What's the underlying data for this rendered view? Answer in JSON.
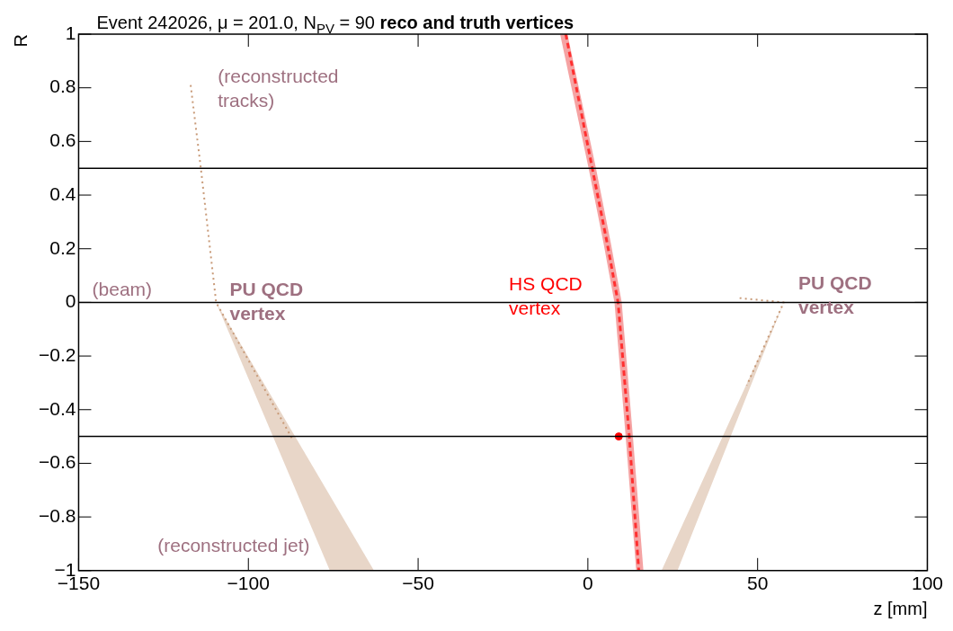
{
  "chart_data": {
    "type": "line",
    "title": "Event 242026, μ = 201.0, N$_{PV}$ = 90",
    "subtitle": "reco and truth vertices",
    "xlabel": "z [mm]",
    "ylabel": "R",
    "xlim": [
      -150,
      100
    ],
    "xticks": [
      {
        "value": -150,
        "label": "−150"
      },
      {
        "value": -100,
        "label": "−100"
      },
      {
        "value": -50,
        "label": "−50"
      },
      0,
      50,
      100
    ],
    "ylim": [
      -1,
      1
    ],
    "yticks": [
      {
        "value": -1,
        "label": "−1"
      },
      {
        "value": -0.8,
        "label": "−0.8"
      },
      {
        "value": -0.6,
        "label": "−0.6"
      },
      {
        "value": -0.4,
        "label": "−0.4"
      },
      {
        "value": -0.2,
        "label": "−0.2"
      },
      0,
      0.2,
      0.4,
      0.6,
      0.8,
      1
    ],
    "grid": false,
    "legend": false,
    "marker": "none",
    "ref_lines": [
      {
        "axis": "y",
        "value": 0.5,
        "color": "#000000"
      },
      {
        "axis": "y",
        "value": 0,
        "color": "#000000"
      },
      {
        "axis": "y",
        "value": -0.5,
        "color": "#000000"
      }
    ],
    "series": [
      {
        "color": "#e8d6c8",
        "x": [
          -109.5,
          -76,
          -63
        ],
        "values": [
          null,
          null,
          null
        ],
        "lower": [
          0,
          -1,
          -1
        ],
        "upper": [
          0,
          -0.72,
          -1
        ]
      },
      {
        "color": "#e8d6c8",
        "x": [
          21.7,
          26.4,
          57.7
        ],
        "values": [
          null,
          null,
          null
        ],
        "lower": [
          -1,
          -1,
          0
        ],
        "upper": [
          -1,
          -0.87,
          0
        ]
      },
      {
        "color": "#f5a3a3",
        "x": [
          -7.1,
          1.3,
          5.7,
          8.9,
          12.2,
          15.3
        ],
        "values": [
          1,
          0.5,
          0.22,
          0,
          -0.5,
          -1
        ],
        "line_style": "solid"
      },
      {
        "color": "#c89a78",
        "x": [
          -117,
          -114,
          -109.5,
          -87
        ],
        "values": [
          0.81,
          0.5,
          0,
          -0.51
        ],
        "line_style": "dotted"
      },
      {
        "color": "#c89a78",
        "x": [
          44.7,
          57.7,
          46.8
        ],
        "values": [
          0.016,
          0,
          -0.31
        ],
        "line_style": "dotted"
      },
      {
        "color": "#ff3030",
        "x": [
          -6.5,
          1.3,
          5.7,
          8.9,
          12.2,
          15.0
        ],
        "values": [
          1,
          0.5,
          0.22,
          0,
          -0.5,
          -1
        ],
        "line_style": "dashed"
      },
      {
        "type": "scatter",
        "color": "#ff0000",
        "x": [
          9.1
        ],
        "values": [
          -0.5
        ],
        "marker": "circle"
      }
    ],
    "annotations": [
      "(reconstructed tracks)",
      "(beam)",
      "PU QCD vertex",
      "HS QCD vertex",
      "PU QCD vertex",
      "(reconstructed jet)"
    ]
  }
}
